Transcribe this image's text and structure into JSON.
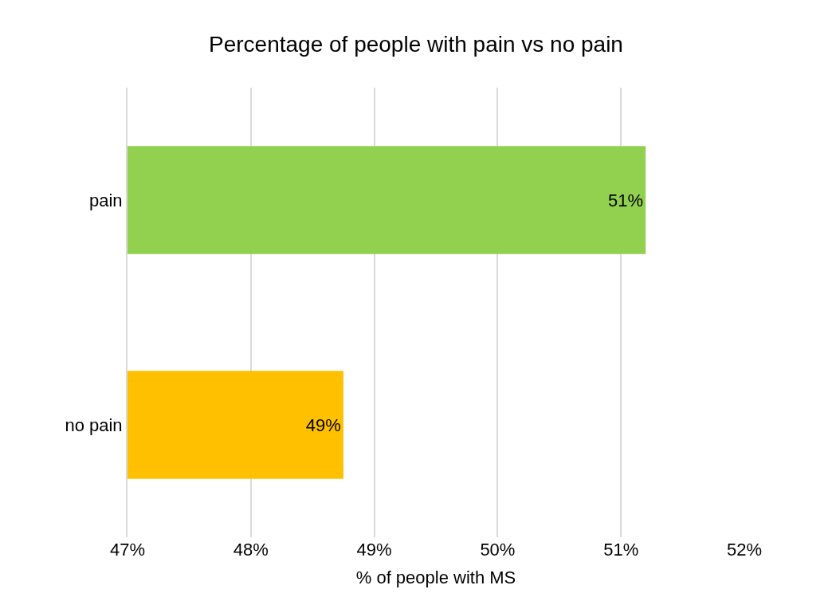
{
  "chart_data": {
    "type": "bar",
    "orientation": "horizontal",
    "title": "Percentage of people with pain vs no pain",
    "xlabel": "% of people with MS",
    "categories": [
      "pain",
      "no pain"
    ],
    "values": [
      51.2,
      48.75
    ],
    "colors": [
      "#92d050",
      "#ffc000"
    ],
    "value_labels": [
      "51%",
      "49%"
    ],
    "xlim": [
      47,
      52
    ],
    "xticks": [
      {
        "value": 47,
        "label": "47%"
      },
      {
        "value": 48,
        "label": "48%"
      },
      {
        "value": 49,
        "label": "49%"
      },
      {
        "value": 50,
        "label": "50%"
      },
      {
        "value": 51,
        "label": "51%"
      },
      {
        "value": 52,
        "label": "52%"
      }
    ],
    "grid": "x",
    "legend": false
  }
}
